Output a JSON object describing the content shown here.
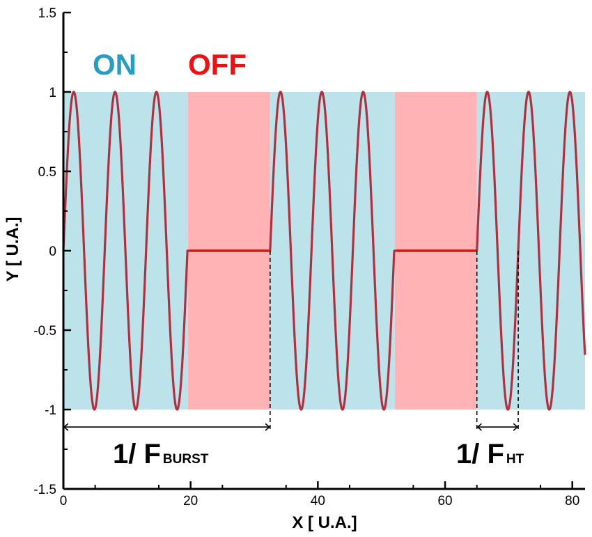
{
  "chart_data": {
    "type": "line",
    "title": "",
    "xlabel": "X [ U.A.]",
    "ylabel": "Y [ U.A.]",
    "xlim": [
      0,
      82
    ],
    "ylim": [
      -1.5,
      1.5
    ],
    "x_ticks": [
      0,
      20,
      40,
      60,
      80
    ],
    "x_tick_labels": [
      "0",
      "20",
      "40",
      "60",
      "80"
    ],
    "y_ticks": [
      -1.5,
      -1,
      -0.5,
      0,
      0.5,
      1,
      1.5
    ],
    "y_tick_labels": [
      "-1.5",
      "-1",
      "-0.5",
      "0",
      "0.5",
      "1",
      "1.5"
    ],
    "grid": false,
    "colors": {
      "on_region": "#bde3ea",
      "off_region": "#ffb3b5",
      "signal": "#b03040",
      "off_signal": "#dd1111",
      "on_label": "#2a9cc4",
      "off_label": "#ee1111"
    },
    "regions": [
      {
        "state": "ON",
        "x0": 0,
        "x1": 19.6
      },
      {
        "state": "OFF",
        "x0": 19.6,
        "x1": 32.5
      },
      {
        "state": "ON",
        "x0": 32.5,
        "x1": 52.1
      },
      {
        "state": "OFF",
        "x0": 52.1,
        "x1": 65.0
      },
      {
        "state": "ON",
        "x0": 65.0,
        "x1": 82
      }
    ],
    "region_labels": {
      "on": "ON",
      "off": "OFF"
    },
    "series": [
      {
        "amplitude": 1,
        "period": 6.5,
        "burst_period": 32.5,
        "cycles_on": 3,
        "ramp_start": 0.18
      }
    ],
    "annotations": [
      {
        "id": "burst",
        "text": "1/ F",
        "subscript": "BURST",
        "x0": 0,
        "x1": 32.5,
        "y": -1.11
      },
      {
        "id": "ht",
        "text": "1/ F",
        "subscript": "HT",
        "x0": 65.0,
        "x1": 71.5,
        "y": -1.11
      }
    ]
  }
}
